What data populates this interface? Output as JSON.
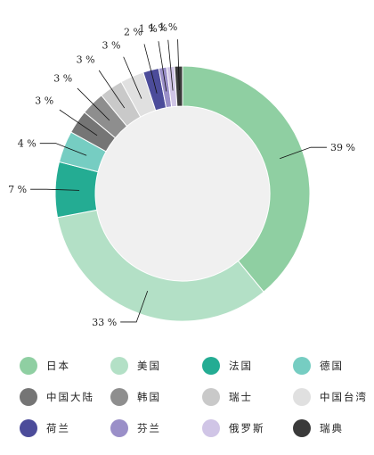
{
  "chart_data": {
    "type": "pie",
    "donut": true,
    "categories": [
      "日本",
      "美国",
      "法国",
      "德国",
      "中国大陆",
      "韩国",
      "瑞士",
      "中国台湾",
      "荷兰",
      "芬兰",
      "俄罗斯",
      "瑞典"
    ],
    "values": [
      39,
      33,
      7,
      4,
      3,
      3,
      3,
      3,
      2,
      1,
      1,
      1
    ],
    "labels": [
      "39 %",
      "33 %",
      "7 %",
      "4 %",
      "3 %",
      "3 %",
      "3 %",
      "3 %",
      "2 %",
      "1 %",
      "1 %",
      "1 %"
    ],
    "colors": [
      "#8fcfa2",
      "#b3e0c6",
      "#24ac93",
      "#76cdc2",
      "#757575",
      "#8e8e8e",
      "#c9c9c9",
      "#e0e0e0",
      "#4c4c9a",
      "#9a8fc8",
      "#d0c5e6",
      "#3a3a3a"
    ],
    "center_fill": "#f0f0f0",
    "legend_position": "bottom"
  }
}
